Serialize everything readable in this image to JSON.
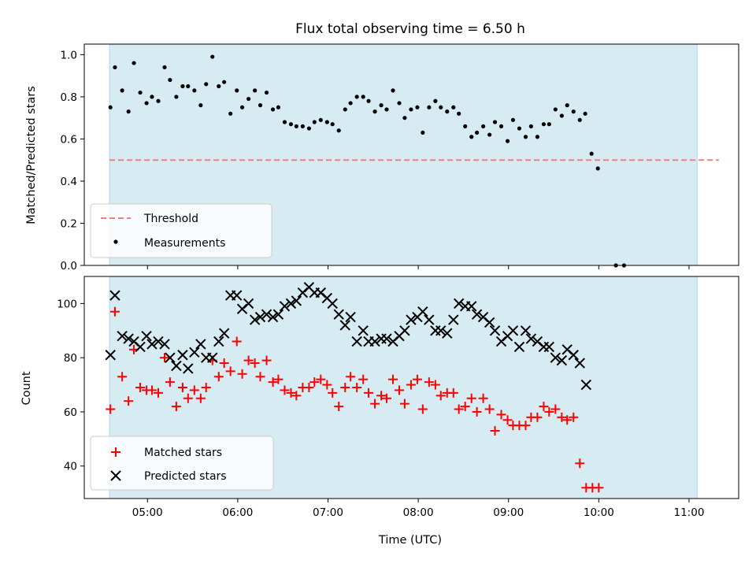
{
  "chart_data": [
    {
      "type": "scatter",
      "title": "Flux total observing time = 6.50 h",
      "xlabel": "",
      "ylabel": "Matched/Predicted stars",
      "xlim": [
        4.3,
        11.55
      ],
      "ylim": [
        0.0,
        1.05
      ],
      "yticks": [
        0.0,
        0.2,
        0.4,
        0.6,
        0.8,
        1.0
      ],
      "ytick_labels": [
        "0.0",
        "0.2",
        "0.4",
        "0.6",
        "0.8",
        "1.0"
      ],
      "shaded_interval": [
        4.58,
        11.09
      ],
      "threshold": {
        "name": "Threshold",
        "y": 0.5,
        "x_range": [
          4.58,
          11.33
        ],
        "color": "#f08080"
      },
      "series": [
        {
          "name": "Measurements",
          "color": "#000000",
          "marker": "dot",
          "points": [
            [
              4.59,
              0.75
            ],
            [
              4.64,
              0.94
            ],
            [
              4.72,
              0.83
            ],
            [
              4.79,
              0.73
            ],
            [
              4.85,
              0.96
            ],
            [
              4.92,
              0.82
            ],
            [
              4.99,
              0.77
            ],
            [
              5.05,
              0.8
            ],
            [
              5.12,
              0.78
            ],
            [
              5.19,
              0.94
            ],
            [
              5.25,
              0.88
            ],
            [
              5.32,
              0.8
            ],
            [
              5.39,
              0.85
            ],
            [
              5.45,
              0.85
            ],
            [
              5.52,
              0.83
            ],
            [
              5.59,
              0.76
            ],
            [
              5.65,
              0.86
            ],
            [
              5.72,
              0.99
            ],
            [
              5.79,
              0.85
            ],
            [
              5.85,
              0.87
            ],
            [
              5.92,
              0.72
            ],
            [
              5.99,
              0.83
            ],
            [
              6.05,
              0.75
            ],
            [
              6.12,
              0.79
            ],
            [
              6.19,
              0.83
            ],
            [
              6.25,
              0.76
            ],
            [
              6.32,
              0.82
            ],
            [
              6.39,
              0.74
            ],
            [
              6.45,
              0.75
            ],
            [
              6.52,
              0.68
            ],
            [
              6.59,
              0.67
            ],
            [
              6.65,
              0.66
            ],
            [
              6.72,
              0.66
            ],
            [
              6.79,
              0.65
            ],
            [
              6.85,
              0.68
            ],
            [
              6.92,
              0.69
            ],
            [
              6.99,
              0.68
            ],
            [
              7.05,
              0.67
            ],
            [
              7.12,
              0.64
            ],
            [
              7.19,
              0.74
            ],
            [
              7.25,
              0.77
            ],
            [
              7.32,
              0.8
            ],
            [
              7.39,
              0.8
            ],
            [
              7.45,
              0.78
            ],
            [
              7.52,
              0.73
            ],
            [
              7.59,
              0.76
            ],
            [
              7.65,
              0.74
            ],
            [
              7.72,
              0.83
            ],
            [
              7.79,
              0.77
            ],
            [
              7.85,
              0.7
            ],
            [
              7.92,
              0.74
            ],
            [
              7.99,
              0.75
            ],
            [
              8.05,
              0.63
            ],
            [
              8.12,
              0.75
            ],
            [
              8.19,
              0.78
            ],
            [
              8.25,
              0.75
            ],
            [
              8.32,
              0.73
            ],
            [
              8.39,
              0.75
            ],
            [
              8.45,
              0.72
            ],
            [
              8.52,
              0.66
            ],
            [
              8.59,
              0.61
            ],
            [
              8.65,
              0.63
            ],
            [
              8.72,
              0.66
            ],
            [
              8.79,
              0.62
            ],
            [
              8.85,
              0.68
            ],
            [
              8.92,
              0.66
            ],
            [
              8.99,
              0.59
            ],
            [
              9.05,
              0.69
            ],
            [
              9.12,
              0.65
            ],
            [
              9.19,
              0.61
            ],
            [
              9.25,
              0.66
            ],
            [
              9.32,
              0.61
            ],
            [
              9.39,
              0.67
            ],
            [
              9.45,
              0.67
            ],
            [
              9.52,
              0.74
            ],
            [
              9.59,
              0.71
            ],
            [
              9.65,
              0.76
            ],
            [
              9.72,
              0.73
            ],
            [
              9.79,
              0.69
            ],
            [
              9.85,
              0.72
            ],
            [
              9.92,
              0.53
            ],
            [
              9.99,
              0.46
            ],
            [
              10.19,
              0.0
            ],
            [
              10.28,
              0.0
            ]
          ]
        }
      ],
      "legend": {
        "position": "lower-left",
        "entries": [
          "Threshold",
          "Measurements"
        ]
      }
    },
    {
      "type": "scatter",
      "title": "",
      "xlabel": "Time (UTC)",
      "ylabel": "Count",
      "xlim": [
        4.3,
        11.55
      ],
      "ylim": [
        28,
        110
      ],
      "yticks": [
        40,
        60,
        80,
        100
      ],
      "ytick_labels": [
        "40",
        "60",
        "80",
        "100"
      ],
      "xticks": [
        5,
        6,
        7,
        8,
        9,
        10,
        11
      ],
      "xtick_labels": [
        "05:00",
        "06:00",
        "07:00",
        "08:00",
        "09:00",
        "10:00",
        "11:00"
      ],
      "shaded_interval": [
        4.58,
        11.09
      ],
      "series": [
        {
          "name": "Matched stars",
          "color": "#ff0000",
          "marker": "plus",
          "points": [
            [
              4.59,
              61
            ],
            [
              4.64,
              97
            ],
            [
              4.72,
              73
            ],
            [
              4.79,
              64
            ],
            [
              4.85,
              83
            ],
            [
              4.92,
              69
            ],
            [
              4.99,
              68
            ],
            [
              5.05,
              68
            ],
            [
              5.12,
              67
            ],
            [
              5.19,
              80
            ],
            [
              5.25,
              71
            ],
            [
              5.32,
              62
            ],
            [
              5.39,
              69
            ],
            [
              5.45,
              65
            ],
            [
              5.52,
              68
            ],
            [
              5.59,
              65
            ],
            [
              5.65,
              69
            ],
            [
              5.72,
              79
            ],
            [
              5.79,
              73
            ],
            [
              5.85,
              78
            ],
            [
              5.92,
              75
            ],
            [
              5.99,
              86
            ],
            [
              6.05,
              74
            ],
            [
              6.12,
              79
            ],
            [
              6.19,
              78
            ],
            [
              6.25,
              73
            ],
            [
              6.32,
              79
            ],
            [
              6.39,
              71
            ],
            [
              6.45,
              72
            ],
            [
              6.52,
              68
            ],
            [
              6.59,
              67
            ],
            [
              6.65,
              66
            ],
            [
              6.72,
              69
            ],
            [
              6.79,
              69
            ],
            [
              6.85,
              71
            ],
            [
              6.92,
              72
            ],
            [
              6.99,
              70
            ],
            [
              7.05,
              67
            ],
            [
              7.12,
              62
            ],
            [
              7.19,
              69
            ],
            [
              7.25,
              73
            ],
            [
              7.32,
              69
            ],
            [
              7.39,
              72
            ],
            [
              7.45,
              67
            ],
            [
              7.52,
              63
            ],
            [
              7.59,
              66
            ],
            [
              7.65,
              65
            ],
            [
              7.72,
              72
            ],
            [
              7.79,
              68
            ],
            [
              7.85,
              63
            ],
            [
              7.92,
              70
            ],
            [
              7.99,
              72
            ],
            [
              8.05,
              61
            ],
            [
              8.12,
              71
            ],
            [
              8.19,
              70
            ],
            [
              8.25,
              66
            ],
            [
              8.32,
              67
            ],
            [
              8.39,
              67
            ],
            [
              8.45,
              61
            ],
            [
              8.52,
              62
            ],
            [
              8.59,
              65
            ],
            [
              8.65,
              60
            ],
            [
              8.72,
              65
            ],
            [
              8.79,
              61
            ],
            [
              8.85,
              53
            ],
            [
              8.92,
              59
            ],
            [
              8.99,
              57
            ],
            [
              9.05,
              55
            ],
            [
              9.12,
              55
            ],
            [
              9.19,
              55
            ],
            [
              9.25,
              58
            ],
            [
              9.32,
              58
            ],
            [
              9.39,
              62
            ],
            [
              9.45,
              60
            ],
            [
              9.52,
              61
            ],
            [
              9.59,
              58
            ],
            [
              9.65,
              57
            ],
            [
              9.72,
              58
            ],
            [
              9.79,
              41
            ],
            [
              9.86,
              32
            ],
            [
              9.93,
              32
            ],
            [
              10.0,
              32
            ]
          ]
        },
        {
          "name": "Predicted stars",
          "color": "#000000",
          "marker": "x",
          "points": [
            [
              4.59,
              81
            ],
            [
              4.64,
              103
            ],
            [
              4.72,
              88
            ],
            [
              4.79,
              87
            ],
            [
              4.85,
              86
            ],
            [
              4.92,
              84
            ],
            [
              4.99,
              88
            ],
            [
              5.05,
              85
            ],
            [
              5.12,
              86
            ],
            [
              5.19,
              85
            ],
            [
              5.25,
              80
            ],
            [
              5.32,
              77
            ],
            [
              5.39,
              81
            ],
            [
              5.45,
              76
            ],
            [
              5.52,
              82
            ],
            [
              5.59,
              85
            ],
            [
              5.65,
              80
            ],
            [
              5.72,
              80
            ],
            [
              5.79,
              86
            ],
            [
              5.85,
              89
            ],
            [
              5.92,
              103
            ],
            [
              5.99,
              103
            ],
            [
              6.05,
              98
            ],
            [
              6.12,
              100
            ],
            [
              6.19,
              94
            ],
            [
              6.25,
              95
            ],
            [
              6.32,
              96
            ],
            [
              6.39,
              95
            ],
            [
              6.45,
              96
            ],
            [
              6.52,
              99
            ],
            [
              6.59,
              100
            ],
            [
              6.65,
              101
            ],
            [
              6.72,
              104
            ],
            [
              6.79,
              106
            ],
            [
              6.85,
              104
            ],
            [
              6.92,
              104
            ],
            [
              6.99,
              102
            ],
            [
              7.05,
              100
            ],
            [
              7.12,
              96
            ],
            [
              7.19,
              92
            ],
            [
              7.25,
              95
            ],
            [
              7.32,
              86
            ],
            [
              7.39,
              90
            ],
            [
              7.45,
              86
            ],
            [
              7.52,
              86
            ],
            [
              7.59,
              87
            ],
            [
              7.65,
              87
            ],
            [
              7.72,
              86
            ],
            [
              7.79,
              88
            ],
            [
              7.85,
              90
            ],
            [
              7.92,
              94
            ],
            [
              7.99,
              95
            ],
            [
              8.05,
              97
            ],
            [
              8.12,
              94
            ],
            [
              8.19,
              90
            ],
            [
              8.25,
              90
            ],
            [
              8.32,
              89
            ],
            [
              8.39,
              94
            ],
            [
              8.45,
              100
            ],
            [
              8.52,
              99
            ],
            [
              8.59,
              99
            ],
            [
              8.65,
              96
            ],
            [
              8.72,
              95
            ],
            [
              8.79,
              93
            ],
            [
              8.85,
              90
            ],
            [
              8.92,
              86
            ],
            [
              8.99,
              88
            ],
            [
              9.05,
              90
            ],
            [
              9.12,
              84
            ],
            [
              9.19,
              90
            ],
            [
              9.25,
              87
            ],
            [
              9.32,
              86
            ],
            [
              9.39,
              84
            ],
            [
              9.45,
              84
            ],
            [
              9.52,
              80
            ],
            [
              9.59,
              79
            ],
            [
              9.65,
              83
            ],
            [
              9.72,
              81
            ],
            [
              9.79,
              78
            ],
            [
              9.86,
              70
            ]
          ]
        }
      ],
      "legend": {
        "position": "lower-left",
        "entries": [
          "Matched stars",
          "Predicted stars"
        ]
      }
    }
  ]
}
